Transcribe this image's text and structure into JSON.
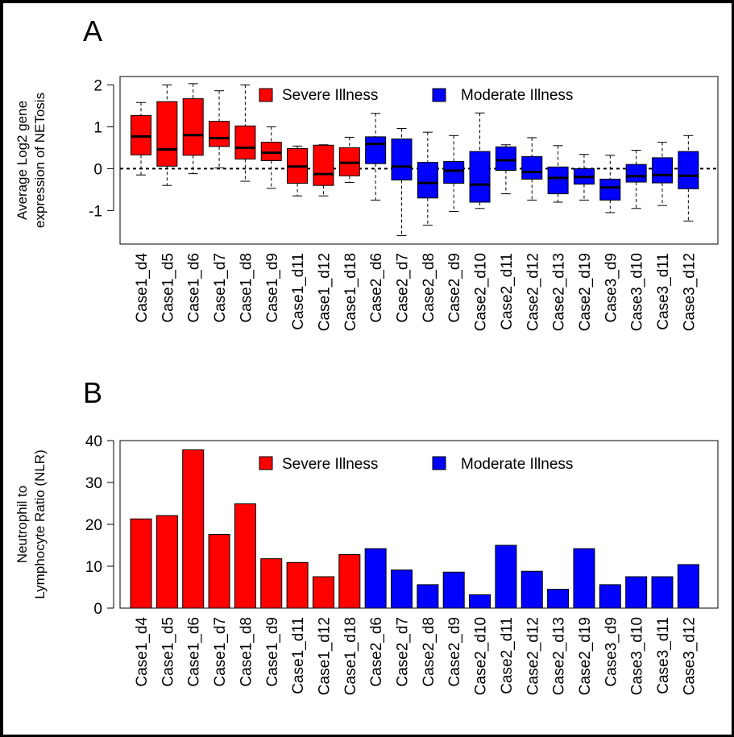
{
  "panels": {
    "a": {
      "letter": "A"
    },
    "b": {
      "letter": "B"
    }
  },
  "legend": {
    "severe": {
      "label": "Severe Illness",
      "color": "#ff0000"
    },
    "moderate": {
      "label": "Moderate Illness",
      "color": "#0000ff"
    }
  },
  "chart_data": [
    {
      "type": "box",
      "panel": "A",
      "title": "",
      "xlabel": "",
      "ylabel_lines": [
        "Average  Log2 gene",
        "expression of NETosis"
      ],
      "ylim": [
        -1.8,
        2.2
      ],
      "yticks": [
        -1,
        0,
        1,
        2
      ],
      "reference_line": 0,
      "grid": false,
      "legend_position": "top",
      "categories": [
        "Case1_d4",
        "Case1_d5",
        "Case1_d6",
        "Case1_d7",
        "Case1_d8",
        "Case1_d9",
        "Case1_d11",
        "Case1_d12",
        "Case1_d18",
        "Case2_d6",
        "Case2_d7",
        "Case2_d8",
        "Case2_d9",
        "Case2_d10",
        "Case2_d11",
        "Case2_d12",
        "Case2_d13",
        "Case2_d19",
        "Case3_d9",
        "Case3_d10",
        "Case3_d11",
        "Case3_d12"
      ],
      "groups": [
        "severe",
        "severe",
        "severe",
        "severe",
        "severe",
        "severe",
        "severe",
        "severe",
        "severe",
        "moderate",
        "moderate",
        "moderate",
        "moderate",
        "moderate",
        "moderate",
        "moderate",
        "moderate",
        "moderate",
        "moderate",
        "moderate",
        "moderate",
        "moderate"
      ],
      "boxes": [
        {
          "min": -0.15,
          "q1": 0.33,
          "median": 0.77,
          "q3": 1.27,
          "max": 1.58
        },
        {
          "min": -0.4,
          "q1": 0.06,
          "median": 0.46,
          "q3": 1.6,
          "max": 2.0
        },
        {
          "min": -0.12,
          "q1": 0.32,
          "median": 0.8,
          "q3": 1.67,
          "max": 2.03
        },
        {
          "min": 0.02,
          "q1": 0.53,
          "median": 0.73,
          "q3": 1.13,
          "max": 1.86
        },
        {
          "min": -0.3,
          "q1": 0.23,
          "median": 0.5,
          "q3": 1.02,
          "max": 2.0
        },
        {
          "min": -0.47,
          "q1": 0.19,
          "median": 0.38,
          "q3": 0.63,
          "max": 1.0
        },
        {
          "min": -0.65,
          "q1": -0.35,
          "median": 0.05,
          "q3": 0.48,
          "max": 0.54
        },
        {
          "min": -0.65,
          "q1": -0.4,
          "median": -0.13,
          "q3": 0.56,
          "max": 0.57
        },
        {
          "min": -0.33,
          "q1": -0.17,
          "median": 0.14,
          "q3": 0.5,
          "max": 0.75
        },
        {
          "min": -0.75,
          "q1": 0.12,
          "median": 0.59,
          "q3": 0.76,
          "max": 1.32
        },
        {
          "min": -1.6,
          "q1": -0.27,
          "median": 0.05,
          "q3": 0.71,
          "max": 0.96
        },
        {
          "min": -1.35,
          "q1": -0.7,
          "median": -0.34,
          "q3": 0.15,
          "max": 0.87
        },
        {
          "min": -1.02,
          "q1": -0.35,
          "median": -0.05,
          "q3": 0.17,
          "max": 0.79
        },
        {
          "min": -0.95,
          "q1": -0.8,
          "median": -0.38,
          "q3": 0.41,
          "max": 1.33
        },
        {
          "min": -0.6,
          "q1": -0.04,
          "median": 0.2,
          "q3": 0.52,
          "max": 0.57
        },
        {
          "min": -0.75,
          "q1": -0.25,
          "median": -0.08,
          "q3": 0.29,
          "max": 0.74
        },
        {
          "min": -0.8,
          "q1": -0.6,
          "median": -0.22,
          "q3": 0.04,
          "max": 0.55
        },
        {
          "min": -0.75,
          "q1": -0.37,
          "median": -0.2,
          "q3": 0.0,
          "max": 0.34
        },
        {
          "min": -1.05,
          "q1": -0.75,
          "median": -0.45,
          "q3": -0.25,
          "max": 0.32
        },
        {
          "min": -0.95,
          "q1": -0.32,
          "median": -0.18,
          "q3": 0.1,
          "max": 0.44
        },
        {
          "min": -0.88,
          "q1": -0.34,
          "median": -0.15,
          "q3": 0.26,
          "max": 0.63
        },
        {
          "min": -1.25,
          "q1": -0.48,
          "median": -0.17,
          "q3": 0.41,
          "max": 0.79
        }
      ]
    },
    {
      "type": "bar",
      "panel": "B",
      "title": "",
      "xlabel": "",
      "ylabel_lines": [
        "Neutrophil to",
        "Lymphocyte Ratio (NLR)"
      ],
      "ylim": [
        0,
        40
      ],
      "yticks": [
        0,
        10,
        20,
        30,
        40
      ],
      "grid": false,
      "legend_position": "top",
      "categories": [
        "Case1_d4",
        "Case1_d5",
        "Case1_d6",
        "Case1_d7",
        "Case1_d8",
        "Case1_d9",
        "Case1_d11",
        "Case1_d12",
        "Case1_d18",
        "Case2_d6",
        "Case2_d7",
        "Case2_d8",
        "Case2_d9",
        "Case2_d10",
        "Case2_d11",
        "Case2_d12",
        "Case2_d13",
        "Case2_d19",
        "Case3_d9",
        "Case3_d10",
        "Case3_d11",
        "Case3_d12"
      ],
      "groups": [
        "severe",
        "severe",
        "severe",
        "severe",
        "severe",
        "severe",
        "severe",
        "severe",
        "severe",
        "moderate",
        "moderate",
        "moderate",
        "moderate",
        "moderate",
        "moderate",
        "moderate",
        "moderate",
        "moderate",
        "moderate",
        "moderate",
        "moderate",
        "moderate"
      ],
      "values": [
        21.3,
        22.1,
        37.8,
        17.6,
        24.9,
        11.8,
        10.9,
        7.5,
        12.8,
        14.2,
        9.1,
        5.6,
        8.6,
        3.2,
        15.0,
        8.8,
        4.5,
        14.2,
        5.6,
        7.5,
        7.5,
        10.4
      ]
    }
  ]
}
